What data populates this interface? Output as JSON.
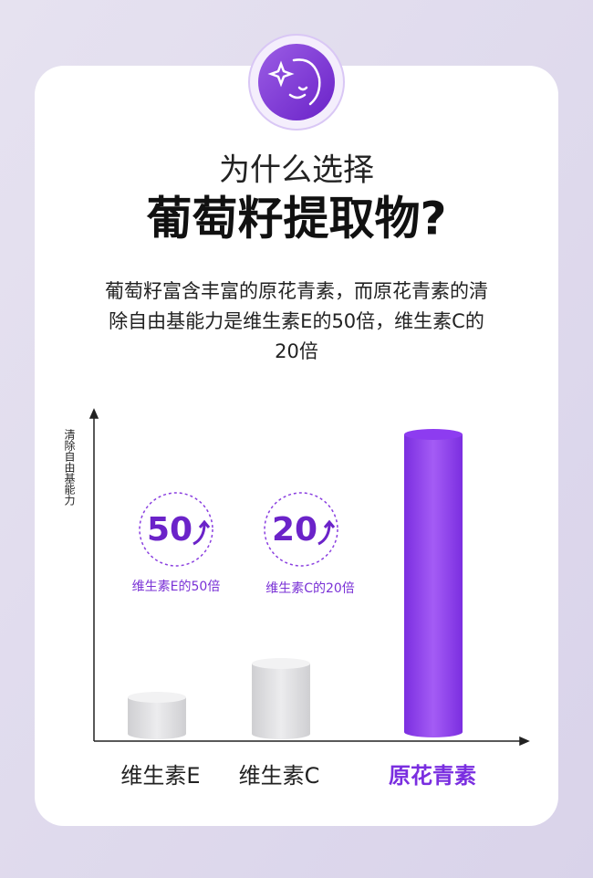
{
  "header": {
    "title_line1": "为什么选择",
    "title_line2": "葡萄籽提取物?"
  },
  "description": {
    "lines": [
      "葡萄籽富含丰富的原花青素，而原花青素的清",
      "除自由基能力是维生素E的50倍，维生素C的",
      "20倍"
    ]
  },
  "chart": {
    "y_label": "清除自由基能力",
    "badges": [
      {
        "number": "50",
        "caption": "维生素E的50倍"
      },
      {
        "number": "20",
        "caption": "维生素C的20倍"
      }
    ],
    "categories": [
      "维生素E",
      "维生素C",
      "原花青素"
    ]
  }
}
